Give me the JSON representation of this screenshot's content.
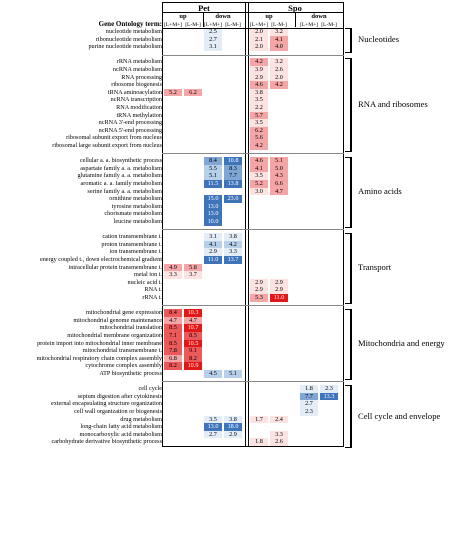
{
  "header": {
    "pet": "Pet",
    "spo": "Spo",
    "up": "up",
    "down": "down",
    "col_lm": "[L+M+]",
    "col_lmm": "[L-M-]",
    "term_header": "Gene Ontology term:"
  },
  "rows": [
    {
      "term": "nucleotide metabolism",
      "c": [
        "",
        "",
        "2.5",
        "",
        "2.0",
        "3.2",
        "",
        ""
      ]
    },
    {
      "term": "ribonucleotide metabolism",
      "c": [
        "",
        "",
        "2.7",
        "",
        "2.1",
        "4.1",
        "",
        ""
      ]
    },
    {
      "term": "purine nucleotide metabolism",
      "c": [
        "",
        "",
        "3.1",
        "",
        "2.0",
        "4.0",
        "",
        ""
      ]
    },
    {
      "term": "",
      "c": [
        "",
        "",
        "",
        "",
        "",
        "",
        "",
        ""
      ]
    },
    {
      "term": "rRNA metabolism",
      "c": [
        "",
        "",
        "",
        "",
        "4.2",
        "3.2",
        "",
        ""
      ]
    },
    {
      "term": "ncRNA metabolism",
      "c": [
        "",
        "",
        "",
        "",
        "3.9",
        "2.6",
        "",
        ""
      ]
    },
    {
      "term": "RNA processing",
      "c": [
        "",
        "",
        "",
        "",
        "2.9",
        "2.0",
        "",
        ""
      ]
    },
    {
      "term": "ribosome biogenesis",
      "c": [
        "",
        "",
        "",
        "",
        "4.6",
        "4.2",
        "",
        ""
      ]
    },
    {
      "term": "tRNA aminoacylation",
      "c": [
        "5.2",
        "6.2",
        "",
        "",
        "3.8",
        "",
        "",
        ""
      ]
    },
    {
      "term": "ncRNA transcription",
      "c": [
        "",
        "",
        "",
        "",
        "3.5",
        "",
        "",
        ""
      ]
    },
    {
      "term": "RNA modification",
      "c": [
        "",
        "",
        "",
        "",
        "2.2",
        "",
        "",
        ""
      ]
    },
    {
      "term": "tRNA methylation",
      "c": [
        "",
        "",
        "",
        "",
        "5.7",
        "",
        "",
        ""
      ]
    },
    {
      "term": "ncRNA 3'-end processing",
      "c": [
        "",
        "",
        "",
        "",
        "3.5",
        "",
        "",
        ""
      ]
    },
    {
      "term": "ncRNA 5'-end processing",
      "c": [
        "",
        "",
        "",
        "",
        "6.2",
        "",
        "",
        ""
      ]
    },
    {
      "term": "ribosomal subunit export from nucleus",
      "c": [
        "",
        "",
        "",
        "",
        "5.6",
        "",
        "",
        ""
      ]
    },
    {
      "term": "ribosomal large subunit export from nucleus",
      "c": [
        "",
        "",
        "",
        "",
        "4.2",
        "",
        "",
        ""
      ]
    },
    {
      "term": "",
      "c": [
        "",
        "",
        "",
        "",
        "",
        "",
        "",
        ""
      ]
    },
    {
      "term": "cellular a. a. biosynthetic process",
      "c": [
        "",
        "",
        "8.4",
        "10.8",
        "4.6",
        "5.1",
        "",
        ""
      ]
    },
    {
      "term": "aspartate family a. a. metabolism",
      "c": [
        "",
        "",
        "5.5",
        "8.3",
        "4.1",
        "5.0",
        "",
        ""
      ]
    },
    {
      "term": "glutamine family a. a. metabolism",
      "c": [
        "",
        "",
        "5.1",
        "7.7",
        "3.5",
        "4.3",
        "",
        ""
      ]
    },
    {
      "term": "aromatic a. a. family metabolism",
      "c": [
        "",
        "",
        "11.5",
        "13.8",
        "5.2",
        "6.6",
        "",
        ""
      ]
    },
    {
      "term": "serine family a. a. metabolism",
      "c": [
        "",
        "",
        "",
        "",
        "3.0",
        "4.7",
        "",
        ""
      ]
    },
    {
      "term": "ornithine metabolism",
      "c": [
        "",
        "",
        "15.0",
        "23.0",
        "",
        "",
        "",
        ""
      ]
    },
    {
      "term": "tyrosine metabolism",
      "c": [
        "",
        "",
        "13.0",
        "",
        "",
        "",
        "",
        ""
      ]
    },
    {
      "term": "chorismate metabolism",
      "c": [
        "",
        "",
        "13.0",
        "",
        "",
        "",
        "",
        ""
      ]
    },
    {
      "term": "leucine metabolism",
      "c": [
        "",
        "",
        "10.0",
        "",
        "",
        "",
        "",
        ""
      ]
    },
    {
      "term": "",
      "c": [
        "",
        "",
        "",
        "",
        "",
        "",
        "",
        ""
      ]
    },
    {
      "term": "cation transmembrane t.",
      "c": [
        "",
        "",
        "3.1",
        "3.8",
        "",
        "",
        "",
        ""
      ]
    },
    {
      "term": "proton transmembrane t.",
      "c": [
        "",
        "",
        "4.1",
        "4.2",
        "",
        "",
        "",
        ""
      ]
    },
    {
      "term": "ion transmembrane t.",
      "c": [
        "",
        "",
        "2.9",
        "3.3",
        "",
        "",
        "",
        ""
      ]
    },
    {
      "term": "energy coupled t., down electrochemical gradient",
      "c": [
        "",
        "",
        "11.0",
        "13.7",
        "",
        "",
        "",
        ""
      ]
    },
    {
      "term": "intracellular protein transmembrane t.",
      "c": [
        "4.9",
        "5.8",
        "",
        "",
        "",
        "",
        "",
        ""
      ]
    },
    {
      "term": "metal ion t.",
      "c": [
        "3.3",
        "3.7",
        "",
        "",
        "",
        "",
        "",
        ""
      ]
    },
    {
      "term": "nucleic acid t.",
      "c": [
        "",
        "",
        "",
        "",
        "2.9",
        "2.9",
        "",
        ""
      ]
    },
    {
      "term": "RNA t.",
      "c": [
        "",
        "",
        "",
        "",
        "2.9",
        "2.9",
        "",
        ""
      ]
    },
    {
      "term": "rRNA t.",
      "c": [
        "",
        "",
        "",
        "",
        "5.3",
        "11.0",
        "",
        ""
      ]
    },
    {
      "term": "",
      "c": [
        "",
        "",
        "",
        "",
        "",
        "",
        "",
        ""
      ]
    },
    {
      "term": "mitochondrial gene expression",
      "c": [
        "8.4",
        "10.3",
        "",
        "",
        "",
        "",
        "",
        ""
      ]
    },
    {
      "term": "mitochondrial genome maintenance",
      "c": [
        "4.7",
        "4.7",
        "",
        "",
        "",
        "",
        "",
        ""
      ]
    },
    {
      "term": "mitochondrial translation",
      "c": [
        "8.5",
        "10.7",
        "",
        "",
        "",
        "",
        "",
        ""
      ]
    },
    {
      "term": "mitochondrial membrane organization",
      "c": [
        "7.1",
        "8.5",
        "",
        "",
        "",
        "",
        "",
        ""
      ]
    },
    {
      "term": "protein import into mitochondrial inner membrane",
      "c": [
        "8.5",
        "10.5",
        "",
        "",
        "",
        "",
        "",
        ""
      ]
    },
    {
      "term": "mitochondrial transmembrane t.",
      "c": [
        "7.8",
        "9.1",
        "",
        "",
        "",
        "",
        "",
        ""
      ]
    },
    {
      "term": "mitochondrial respiratory chain complex assembly",
      "c": [
        "6.8",
        "8.2",
        "",
        "",
        "",
        "",
        "",
        ""
      ]
    },
    {
      "term": "cytochrome complex assembly",
      "c": [
        "8.2",
        "10.9",
        "",
        "",
        "",
        "",
        "",
        ""
      ]
    },
    {
      "term": "ATP biosynthetic process",
      "c": [
        "",
        "",
        "4.5",
        "5.1",
        "",
        "",
        "",
        ""
      ]
    },
    {
      "term": "",
      "c": [
        "",
        "",
        "",
        "",
        "",
        "",
        "",
        ""
      ]
    },
    {
      "term": "cell cycle",
      "c": [
        "",
        "",
        "",
        "",
        "",
        "",
        "1.8",
        "2.3"
      ]
    },
    {
      "term": "septum digestion after cytokinesis",
      "c": [
        "",
        "",
        "",
        "",
        "",
        "",
        "7.7",
        "13.3"
      ]
    },
    {
      "term": "external encapsulating structure organization",
      "c": [
        "",
        "",
        "",
        "",
        "",
        "",
        "2.7",
        ""
      ]
    },
    {
      "term": "cell wall organization or biogenesis",
      "c": [
        "",
        "",
        "",
        "",
        "",
        "",
        "2.3",
        ""
      ]
    },
    {
      "term": "drug metabolism",
      "c": [
        "",
        "",
        "3.5",
        "3.8",
        "1.7",
        "2.4",
        "",
        ""
      ]
    },
    {
      "term": "long-chain fatty acid metabolism",
      "c": [
        "",
        "",
        "13.0",
        "18.0",
        "",
        "",
        "",
        ""
      ]
    },
    {
      "term": "monocarboxylic acid metabolism",
      "c": [
        "",
        "",
        "2.7",
        "2.9",
        "",
        "3.3",
        "",
        ""
      ]
    },
    {
      "term": "carbohydrate derivative biosynthetic process",
      "c": [
        "",
        "",
        "",
        "",
        "1.8",
        "2.6",
        "",
        ""
      ]
    }
  ],
  "categories": [
    {
      "label": "Nucleotides",
      "start": 0,
      "end": 2
    },
    {
      "label": "RNA and ribosomes",
      "start": 4,
      "end": 15
    },
    {
      "label": "Amino acids",
      "start": 17,
      "end": 25
    },
    {
      "label": "Transport",
      "start": 27,
      "end": 35
    },
    {
      "label": "Mitochondria and energy",
      "start": 37,
      "end": 45
    },
    {
      "label": "Cell cycle and envelope",
      "start": 47,
      "end": 54
    }
  ],
  "colors": {
    "red_scale": [
      "#fde2e2",
      "#f4a6a6",
      "#ea5a5a",
      "#e01818"
    ],
    "blue_scale": [
      "#e3edf8",
      "#b8cfe9",
      "#7fa6d5",
      "#3f74b8"
    ],
    "border": "#000000"
  }
}
